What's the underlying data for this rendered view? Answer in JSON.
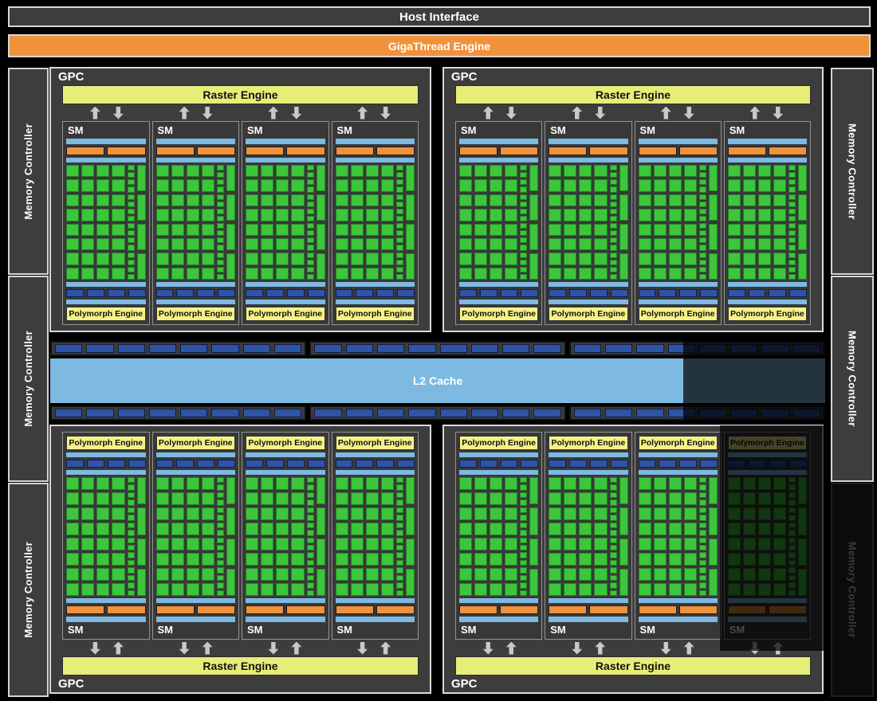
{
  "bars": {
    "host_interface": "Host Interface",
    "gigathread_engine": "GigaThread Engine"
  },
  "l2_cache": {
    "label": "L2 Cache",
    "groups": 3,
    "slots_per_group": 8
  },
  "memory_controller": {
    "label": "Memory Controller",
    "left_count": 3,
    "right_count": 3,
    "dimmed": "right-3"
  },
  "gpc": {
    "label": "GPC",
    "raster_engine_label": "Raster Engine",
    "count": 4,
    "sms_per_gpc": 4,
    "dimmed_sm": "gpc-bottom-right-sm-4"
  },
  "sm": {
    "label": "SM",
    "polymorph_engine_label": "Polymorph Engine",
    "core_grid": {
      "rows": 8,
      "cols": 4
    },
    "ldst_cells": 16,
    "sfu_cells": 4,
    "scheduler_blocks": 2,
    "texture_blocks": 4
  },
  "colors": {
    "background": "#000000",
    "block_gray": "#3d3d3d",
    "orange": "#f0913c",
    "raster_yellow": "#e7ee78",
    "polymorph_yellow": "#f4f286",
    "light_blue": "#7db9e1",
    "dark_blue": "#2d54a6",
    "core_green": "#3bc63b",
    "arrow_gray": "#c9c9c9"
  }
}
